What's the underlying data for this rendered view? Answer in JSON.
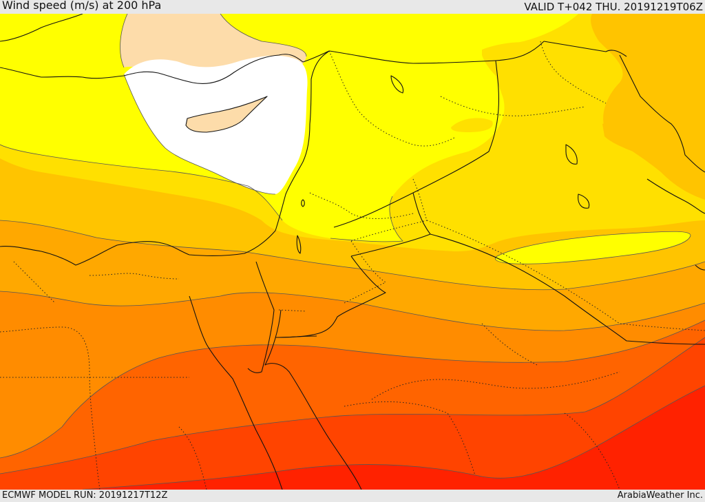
{
  "header": {
    "title": "Wind speed (m/s) at 200 hPa",
    "valid_time": "VALID T+042 THU. 20191219T06Z"
  },
  "footer": {
    "model_run": "ECMWF MODEL RUN: 20191217T12Z",
    "credit": "ArabiaWeather Inc."
  },
  "colors": {
    "white_band": "#ffffff",
    "peach_band": "#fddcaa",
    "yellow_band": "#ffff00",
    "gold_band": "#ffe000",
    "amber_band": "#ffc400",
    "orange_band": "#ffa800",
    "dark_orange_band": "#ff8c00",
    "red_orange_band": "#ff6400",
    "red_band": "#ff4400",
    "deep_red_band": "#ff2200"
  }
}
